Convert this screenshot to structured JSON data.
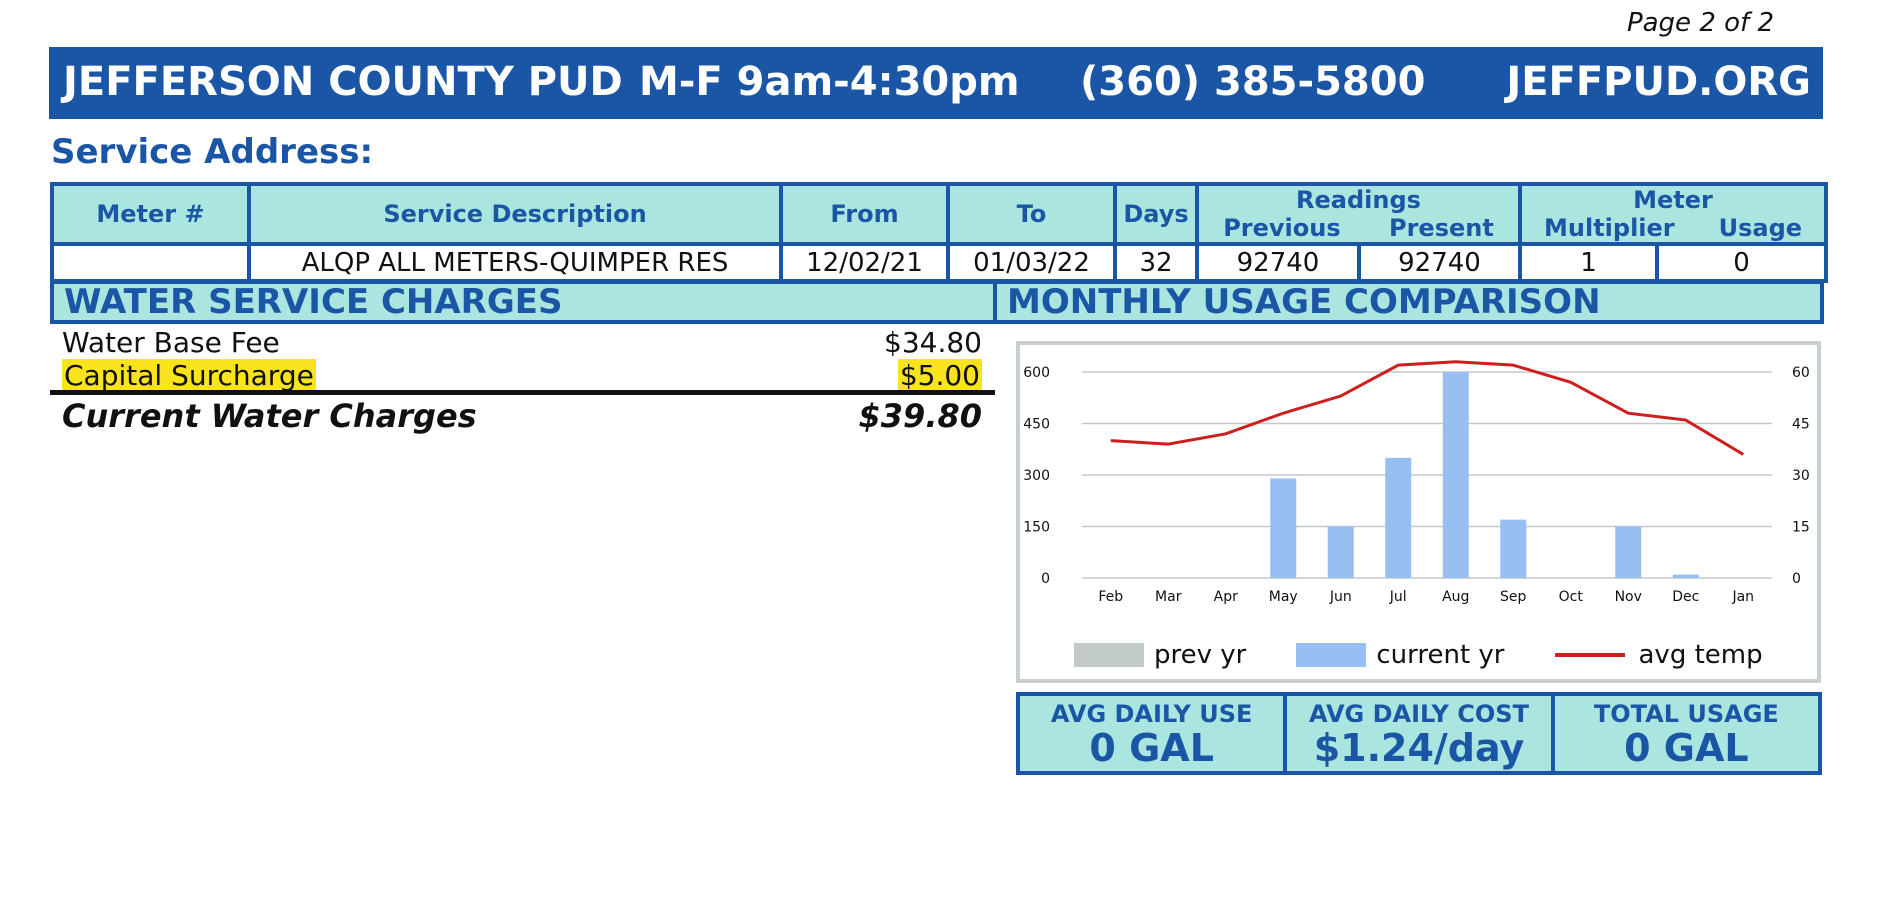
{
  "page_number": "Page 2 of 2",
  "header": {
    "company": "JEFFERSON COUNTY PUD",
    "hours": "M-F 9am-4:30pm",
    "phone": "(360) 385-5800",
    "website": "JEFFPUD.ORG"
  },
  "service_address_label": "Service Address:",
  "meter_table": {
    "headers": {
      "meter_num": "Meter #",
      "service_description": "Service Description",
      "from": "From",
      "to": "To",
      "days": "Days",
      "readings": "Readings",
      "previous": "Previous",
      "present": "Present",
      "meter": "Meter",
      "multiplier": "Multiplier",
      "usage": "Usage"
    },
    "row": {
      "meter_num": "",
      "service_description": "ALQP ALL METERS-QUIMPER RES",
      "from": "12/02/21",
      "to": "01/03/22",
      "days": "32",
      "previous": "92740",
      "present": "92740",
      "multiplier": "1",
      "usage": "0"
    }
  },
  "water_section": {
    "title": "WATER SERVICE CHARGES",
    "items": [
      {
        "label": "Water Base Fee",
        "amount": "$34.80"
      },
      {
        "label": "Capital Surcharge",
        "amount": "$5.00"
      }
    ],
    "total_label": "Current Water Charges",
    "total_amount": "$39.80"
  },
  "usage_section": {
    "title": "MONTHLY USAGE COMPARISON"
  },
  "chart_data": {
    "type": "bar",
    "categories": [
      "Feb",
      "Mar",
      "Apr",
      "May",
      "Jun",
      "Jul",
      "Aug",
      "Sep",
      "Oct",
      "Nov",
      "Dec",
      "Jan"
    ],
    "series": [
      {
        "name": "prev yr",
        "type": "bar",
        "color": "#c2c9c9",
        "values": [
          0,
          0,
          0,
          0,
          0,
          0,
          0,
          0,
          0,
          0,
          0,
          0
        ]
      },
      {
        "name": "current yr",
        "type": "bar",
        "color": "#98bff2",
        "values": [
          0,
          0,
          0,
          290,
          150,
          350,
          600,
          170,
          0,
          150,
          10,
          0
        ]
      },
      {
        "name": "avg temp",
        "type": "line",
        "axis": "right",
        "color": "#cc1f1f",
        "values": [
          40,
          39,
          42,
          48,
          53,
          62,
          63,
          62,
          57,
          48,
          46,
          36
        ]
      }
    ],
    "y_left": {
      "ticks": [
        0,
        150,
        300,
        450,
        600
      ],
      "ylim": [
        0,
        600
      ]
    },
    "y_right": {
      "ticks": [
        0,
        15,
        30,
        45,
        60
      ],
      "ylim": [
        0,
        60
      ]
    },
    "grid": true,
    "legend_position": "bottom"
  },
  "stats": [
    {
      "label": "AVG DAILY USE",
      "value": "0 GAL"
    },
    {
      "label": "AVG DAILY COST",
      "value": "$1.24/day"
    },
    {
      "label": "TOTAL USAGE",
      "value": "0 GAL"
    }
  ]
}
